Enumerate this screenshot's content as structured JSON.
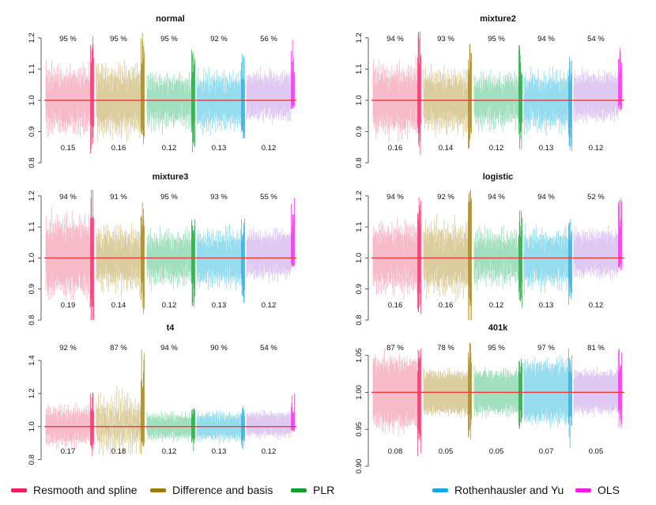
{
  "colors": {
    "resmooth": "#F0829A",
    "difference": "#BDA44C",
    "plr": "#56C48A",
    "rothenhausler": "#3CBFE0",
    "ols": "#C59AE6",
    "truth_line": "#E83A3A",
    "legend": [
      "#EE1F5F",
      "#9C7A10",
      "#0F9E2E",
      "#12A8E5",
      "#F21BE8"
    ]
  },
  "legend": {
    "items": [
      {
        "label": "Resmooth and spline",
        "color_index": 0
      },
      {
        "label": "Difference and basis",
        "color_index": 1
      },
      {
        "label": "PLR",
        "color_index": 2
      },
      {
        "label": "Rothenhausler and Yu",
        "color_index": 3
      },
      {
        "label": "OLS",
        "color_index": 4
      }
    ]
  },
  "chart_data": [
    {
      "type": "bar",
      "title": "normal",
      "ylim": [
        0.8,
        1.22
      ],
      "yticks": [
        "0.8",
        "0.9",
        "1.0",
        "1.1",
        "1.2"
      ],
      "reference_line": 1.0,
      "categories": [
        "Resmooth and spline",
        "Difference and basis",
        "PLR",
        "Rothenhausler and Yu",
        "OLS"
      ],
      "coverage_labels": [
        "95 %",
        "95 %",
        "95 %",
        "92 %",
        "56 %"
      ],
      "width_labels": [
        "0.15",
        "0.16",
        "0.12",
        "0.13",
        "0.12"
      ],
      "interval_center_range": [
        [
          0.86,
          1.14
        ],
        [
          0.84,
          1.16
        ],
        [
          0.88,
          1.12
        ],
        [
          0.87,
          1.11
        ],
        [
          0.96,
          1.12
        ]
      ],
      "half_widths": [
        0.075,
        0.08,
        0.06,
        0.065,
        0.06
      ],
      "miss_tails": [
        [
          0.82,
          1.23
        ],
        [
          0.82,
          1.23
        ],
        [
          0.83,
          1.17
        ],
        [
          0.83,
          1.15
        ],
        [
          0.97,
          1.2
        ]
      ]
    },
    {
      "type": "bar",
      "title": "mixture2",
      "ylim": [
        0.8,
        1.22
      ],
      "yticks": [
        "0.8",
        "0.9",
        "1.0",
        "1.1",
        "1.2"
      ],
      "reference_line": 1.0,
      "categories": [
        "Resmooth and spline",
        "Difference and basis",
        "PLR",
        "Rothenhausler and Yu",
        "OLS"
      ],
      "coverage_labels": [
        "94 %",
        "93 %",
        "95 %",
        "94 %",
        "54 %"
      ],
      "width_labels": [
        "0.16",
        "0.14",
        "0.12",
        "0.13",
        "0.12"
      ],
      "interval_center_range": [
        [
          0.85,
          1.15
        ],
        [
          0.86,
          1.14
        ],
        [
          0.88,
          1.12
        ],
        [
          0.87,
          1.11
        ],
        [
          0.96,
          1.12
        ]
      ],
      "half_widths": [
        0.08,
        0.07,
        0.06,
        0.065,
        0.06
      ],
      "miss_tails": [
        [
          0.82,
          1.24
        ],
        [
          0.8,
          1.21
        ],
        [
          0.84,
          1.18
        ],
        [
          0.83,
          1.14
        ],
        [
          0.96,
          1.2
        ]
      ]
    },
    {
      "type": "bar",
      "title": "mixture3",
      "ylim": [
        0.8,
        1.22
      ],
      "yticks": [
        "0.8",
        "0.9",
        "1.0",
        "1.1",
        "1.2"
      ],
      "reference_line": 1.0,
      "categories": [
        "Resmooth and spline",
        "Difference and basis",
        "PLR",
        "Rothenhausler and Yu",
        "OLS"
      ],
      "coverage_labels": [
        "94 %",
        "91 %",
        "95 %",
        "93 %",
        "55 %"
      ],
      "width_labels": [
        "0.19",
        "0.14",
        "0.12",
        "0.13",
        "0.12"
      ],
      "interval_center_range": [
        [
          0.83,
          1.17
        ],
        [
          0.86,
          1.14
        ],
        [
          0.88,
          1.12
        ],
        [
          0.87,
          1.12
        ],
        [
          0.95,
          1.12
        ]
      ],
      "half_widths": [
        0.095,
        0.07,
        0.06,
        0.065,
        0.06
      ],
      "miss_tails": [
        [
          0.78,
          1.26
        ],
        [
          0.82,
          1.18
        ],
        [
          0.84,
          1.17
        ],
        [
          0.85,
          1.13
        ],
        [
          0.96,
          1.2
        ]
      ]
    },
    {
      "type": "bar",
      "title": "logistic",
      "ylim": [
        0.8,
        1.22
      ],
      "yticks": [
        "0.8",
        "0.9",
        "1.0",
        "1.1",
        "1.2"
      ],
      "reference_line": 1.0,
      "categories": [
        "Resmooth and spline",
        "Difference and basis",
        "PLR",
        "Rothenhausler and Yu",
        "OLS"
      ],
      "coverage_labels": [
        "94 %",
        "92 %",
        "94 %",
        "94 %",
        "52 %"
      ],
      "width_labels": [
        "0.16",
        "0.16",
        "0.12",
        "0.13",
        "0.12"
      ],
      "interval_center_range": [
        [
          0.85,
          1.15
        ],
        [
          0.84,
          1.16
        ],
        [
          0.88,
          1.12
        ],
        [
          0.87,
          1.12
        ],
        [
          0.96,
          1.12
        ]
      ],
      "half_widths": [
        0.08,
        0.08,
        0.06,
        0.065,
        0.06
      ],
      "miss_tails": [
        [
          0.82,
          1.2
        ],
        [
          0.79,
          1.25
        ],
        [
          0.84,
          1.17
        ],
        [
          0.84,
          1.13
        ],
        [
          0.96,
          1.2
        ]
      ]
    },
    {
      "type": "bar",
      "title": "t4",
      "ylim": [
        0.76,
        1.52
      ],
      "yticks": [
        "0.8",
        "1.0",
        "1.2",
        "1.4"
      ],
      "reference_line": 1.0,
      "categories": [
        "Resmooth and spline",
        "Difference and basis",
        "PLR",
        "Rothenhausler and Yu",
        "OLS"
      ],
      "coverage_labels": [
        "92 %",
        "87 %",
        "94 %",
        "90 %",
        "54 %"
      ],
      "width_labels": [
        "0.17",
        "0.18",
        "0.12",
        "0.13",
        "0.12"
      ],
      "interval_center_range": [
        [
          0.83,
          1.17
        ],
        [
          0.7,
          1.4
        ],
        [
          0.9,
          1.1
        ],
        [
          0.89,
          1.1
        ],
        [
          0.96,
          1.12
        ]
      ],
      "half_widths": [
        0.085,
        0.09,
        0.06,
        0.065,
        0.06
      ],
      "miss_tails": [
        [
          0.8,
          1.22
        ],
        [
          0.8,
          1.5
        ],
        [
          0.84,
          1.16
        ],
        [
          0.86,
          1.14
        ],
        [
          0.96,
          1.2
        ]
      ]
    },
    {
      "type": "bar",
      "title": "401k",
      "ylim": [
        0.9,
        1.07
      ],
      "yticks": [
        "0.90",
        "0.95",
        "1.00",
        "1.05"
      ],
      "reference_line": 1.0,
      "categories": [
        "Resmooth and spline",
        "Difference and basis",
        "PLR",
        "Rothenhausler and Yu",
        "OLS"
      ],
      "coverage_labels": [
        "87 %",
        "78 %",
        "95 %",
        "97 %",
        "81 %"
      ],
      "width_labels": [
        "0.08",
        "0.05",
        "0.05",
        "0.07",
        "0.05"
      ],
      "interval_center_range": [
        [
          0.96,
          1.04
        ],
        [
          0.982,
          1.015
        ],
        [
          0.975,
          1.025
        ],
        [
          0.97,
          1.03
        ],
        [
          0.985,
          1.02
        ]
      ],
      "half_widths": [
        0.04,
        0.025,
        0.025,
        0.035,
        0.025
      ],
      "miss_tails": [
        [
          0.91,
          1.07
        ],
        [
          0.93,
          1.07
        ],
        [
          0.95,
          1.05
        ],
        [
          0.92,
          1.06
        ],
        [
          0.95,
          1.06
        ]
      ]
    }
  ]
}
